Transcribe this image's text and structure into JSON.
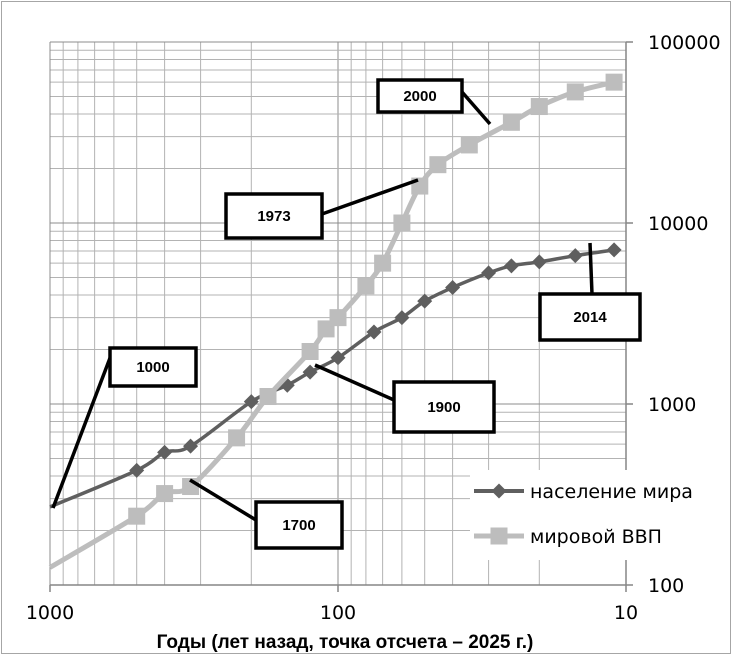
{
  "chart_data": {
    "type": "line",
    "x_scale": "log",
    "y_scale": "log",
    "x_reversed": true,
    "xlim": [
      1000,
      10
    ],
    "ylim": [
      100,
      100000
    ],
    "xlabel": "Годы (лет назад, точка отсчета – 2025 г.)",
    "x_ticks": [
      "1000",
      "100",
      "10"
    ],
    "y_ticks": [
      "100",
      "1000",
      "10000",
      "100000"
    ],
    "y_axis_position": "right",
    "grid": true,
    "legend_position": "right",
    "series": [
      {
        "name": "население мира",
        "color": "#5f5f5f",
        "marker": "diamond",
        "x": [
          1000,
          500,
          400,
          325,
          200,
          150,
          125,
          100,
          75,
          60,
          50,
          40,
          30,
          25,
          20,
          15,
          11
        ],
        "y": [
          270,
          430,
          540,
          585,
          1030,
          1270,
          1500,
          1800,
          2500,
          3000,
          3700,
          4400,
          5300,
          5800,
          6100,
          6600,
          7100
        ]
      },
      {
        "name": "мировой ВВП",
        "color": "#bdbdbd",
        "marker": "square",
        "x": [
          1000,
          500,
          400,
          325,
          225,
          175,
          125,
          110,
          100,
          80,
          70,
          60,
          52,
          45,
          35,
          25,
          20,
          15,
          11
        ],
        "y": [
          125,
          240,
          320,
          350,
          650,
          1100,
          1950,
          2600,
          3000,
          4500,
          6000,
          10000,
          16000,
          21000,
          27000,
          36000,
          44000,
          53000,
          60000
        ]
      }
    ],
    "annotations": [
      {
        "label": "1000"
      },
      {
        "label": "1700"
      },
      {
        "label": "1900"
      },
      {
        "label": "1973"
      },
      {
        "label": "2000"
      },
      {
        "label": "2014"
      }
    ]
  }
}
